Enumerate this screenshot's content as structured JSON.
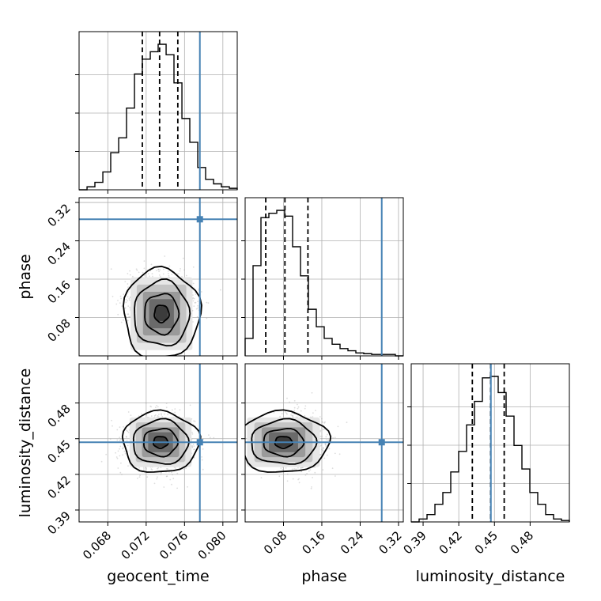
{
  "chart_data": {
    "type": "corner",
    "parameters": [
      "geocent_time",
      "phase",
      "luminosity_distance"
    ],
    "truths": {
      "geocent_time": 0.0776,
      "phase": 0.285,
      "luminosity_distance": 0.447
    },
    "colors": {
      "truth": "#4682b4",
      "hist": "#000000",
      "scatter": "#9e9e9e"
    },
    "grid": true,
    "axes": {
      "geocent_time": {
        "label": "geocent_time",
        "range": [
          0.065,
          0.0815
        ],
        "ticks": [
          "0.068",
          "0.072",
          "0.076",
          "0.080"
        ],
        "tick_values": [
          0.068,
          0.072,
          0.076,
          0.08
        ]
      },
      "phase": {
        "label": "phase",
        "range": [
          0.0,
          0.33
        ],
        "ticks": [
          "0.08",
          "0.16",
          "0.24",
          "0.32"
        ],
        "tick_values": [
          0.08,
          0.16,
          0.24,
          0.32
        ]
      },
      "luminosity_distance": {
        "label": "luminosity_distance",
        "range": [
          0.38,
          0.513
        ],
        "ticks": [
          "0.39",
          "0.42",
          "0.45",
          "0.48"
        ],
        "tick_values": [
          0.39,
          0.42,
          0.45,
          0.48
        ]
      }
    },
    "histograms": [
      {
        "parameter": "geocent_time",
        "bin_edges": [
          0.065,
          0.06583,
          0.06665,
          0.06748,
          0.0683,
          0.06913,
          0.06995,
          0.07078,
          0.0716,
          0.07243,
          0.07325,
          0.07408,
          0.0749,
          0.07573,
          0.07655,
          0.07738,
          0.0782,
          0.07903,
          0.07985,
          0.08068,
          0.0815
        ],
        "counts": [
          0.0,
          0.02,
          0.05,
          0.12,
          0.25,
          0.35,
          0.55,
          0.78,
          0.88,
          0.93,
          0.98,
          0.91,
          0.72,
          0.48,
          0.32,
          0.15,
          0.07,
          0.04,
          0.02,
          0.01
        ],
        "quantiles": [
          0.0716,
          0.0734,
          0.0753
        ]
      },
      {
        "parameter": "phase",
        "bin_edges": [
          0.0,
          0.0165,
          0.033,
          0.0495,
          0.066,
          0.0825,
          0.099,
          0.1155,
          0.132,
          0.1485,
          0.165,
          0.1815,
          0.198,
          0.2145,
          0.231,
          0.2475,
          0.264,
          0.2805,
          0.297,
          0.3135,
          0.33
        ],
        "counts": [
          0.12,
          0.62,
          0.95,
          0.98,
          1.0,
          0.96,
          0.75,
          0.55,
          0.32,
          0.2,
          0.12,
          0.08,
          0.05,
          0.035,
          0.02,
          0.015,
          0.01,
          0.01,
          0.01,
          0.0
        ],
        "quantiles": [
          0.043,
          0.083,
          0.131
        ]
      },
      {
        "parameter": "luminosity_distance",
        "bin_edges": [
          0.38,
          0.38665,
          0.3933,
          0.39995,
          0.4066,
          0.41325,
          0.4199,
          0.42655,
          0.4332,
          0.43985,
          0.4465,
          0.45315,
          0.4598,
          0.46645,
          0.4731,
          0.47975,
          0.4864,
          0.49305,
          0.4997,
          0.50635,
          0.513
        ],
        "counts": [
          0.0,
          0.02,
          0.05,
          0.12,
          0.2,
          0.34,
          0.48,
          0.66,
          0.82,
          0.98,
          0.99,
          0.88,
          0.72,
          0.52,
          0.36,
          0.2,
          0.12,
          0.05,
          0.02,
          0.01
        ],
        "quantiles": [
          0.4314,
          0.4468,
          0.4582
        ]
      }
    ],
    "scatter_panels": [
      {
        "x": "geocent_time",
        "y": "phase",
        "center": [
          0.0736,
          0.088
        ],
        "spread": [
          0.0017,
          0.04
        ]
      },
      {
        "x": "geocent_time",
        "y": "luminosity_distance",
        "center": [
          0.0735,
          0.447
        ],
        "spread": [
          0.0017,
          0.011
        ]
      },
      {
        "x": "phase",
        "y": "luminosity_distance",
        "center": [
          0.08,
          0.447
        ],
        "spread": [
          0.04,
          0.011
        ]
      }
    ]
  }
}
